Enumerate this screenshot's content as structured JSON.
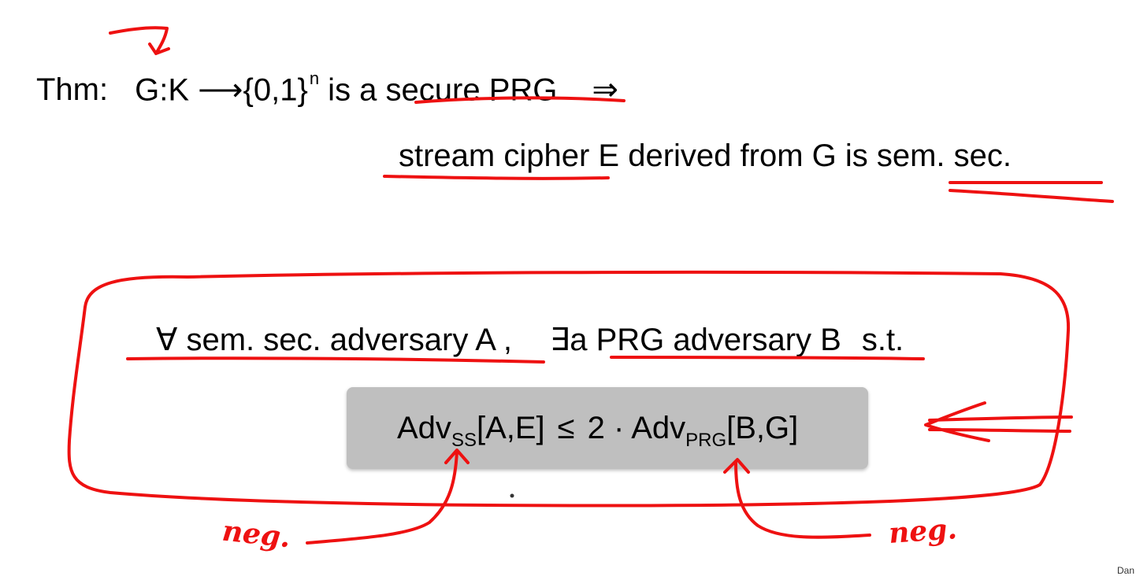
{
  "theorem": {
    "label": "Thm:",
    "lhs": "G:K ⟶{0,1}",
    "exponent": "n",
    "middle": " is a secure PRG",
    "implies": "⇒",
    "conclusion": "stream cipher E derived from G is sem. sec."
  },
  "quantifier": {
    "forall_part": "∀ sem. sec. adversary A ,",
    "exists_part": "∃a PRG adversary B",
    "suffix": "s.t."
  },
  "formula": {
    "adv_left": "Adv",
    "sub_left": "SS",
    "args_left": "[A,E]",
    "leq": "≤",
    "coef": "2 · Adv",
    "sub_right": "PRG",
    "args_right": "[B,G]"
  },
  "annotations": {
    "left_note": "neg.",
    "right_note": "neg."
  },
  "corner_text": "Dan",
  "colors": {
    "ink": "#ee1111",
    "formula_box": "#bfbfbf",
    "text": "#000000"
  }
}
